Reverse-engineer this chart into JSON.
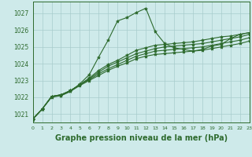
{
  "x": [
    0,
    1,
    2,
    3,
    4,
    5,
    6,
    7,
    8,
    9,
    10,
    11,
    12,
    13,
    14,
    15,
    16,
    17,
    18,
    19,
    20,
    21,
    22,
    23
  ],
  "lines": [
    [
      1020.7,
      1021.3,
      1022.0,
      1022.1,
      1022.35,
      1022.8,
      1023.35,
      1024.4,
      1025.4,
      1026.55,
      1026.75,
      1027.05,
      1027.3,
      1025.9,
      1025.2,
      1024.95,
      1024.85,
      1024.75,
      1024.85,
      1025.05,
      1025.15,
      1025.5,
      1025.75,
      1025.85
    ],
    [
      1020.7,
      1021.3,
      1022.05,
      1022.15,
      1022.4,
      1022.75,
      1023.15,
      1023.6,
      1023.95,
      1024.2,
      1024.5,
      1024.8,
      1024.95,
      1025.1,
      1025.15,
      1025.2,
      1025.25,
      1025.3,
      1025.4,
      1025.5,
      1025.6,
      1025.65,
      1025.75,
      1025.85
    ],
    [
      1020.7,
      1021.3,
      1022.05,
      1022.15,
      1022.4,
      1022.75,
      1023.1,
      1023.5,
      1023.85,
      1024.1,
      1024.35,
      1024.6,
      1024.75,
      1024.9,
      1025.0,
      1025.05,
      1025.1,
      1025.15,
      1025.2,
      1025.3,
      1025.4,
      1025.5,
      1025.6,
      1025.75
    ],
    [
      1020.7,
      1021.3,
      1022.05,
      1022.15,
      1022.4,
      1022.75,
      1023.05,
      1023.4,
      1023.7,
      1023.95,
      1024.2,
      1024.45,
      1024.6,
      1024.75,
      1024.8,
      1024.85,
      1024.9,
      1024.95,
      1025.0,
      1025.1,
      1025.2,
      1025.3,
      1025.4,
      1025.55
    ],
    [
      1020.7,
      1021.3,
      1022.05,
      1022.1,
      1022.35,
      1022.7,
      1023.0,
      1023.3,
      1023.6,
      1023.85,
      1024.05,
      1024.3,
      1024.45,
      1024.55,
      1024.6,
      1024.65,
      1024.7,
      1024.75,
      1024.8,
      1024.9,
      1025.0,
      1025.1,
      1025.2,
      1025.35
    ]
  ],
  "line_color": "#2d6a2d",
  "marker": "*",
  "markersize": 3,
  "linewidth": 0.8,
  "bg_color": "#ceeaea",
  "grid_color": "#a8cccc",
  "xlabel": "Graphe pression niveau de la mer (hPa)",
  "xlabel_fontsize": 7,
  "ylabel_ticks": [
    1021,
    1022,
    1023,
    1024,
    1025,
    1026,
    1027
  ],
  "xtick_labels": [
    "0",
    "1",
    "2",
    "3",
    "4",
    "5",
    "6",
    "7",
    "8",
    "9",
    "10",
    "11",
    "12",
    "13",
    "14",
    "15",
    "16",
    "17",
    "18",
    "19",
    "20",
    "21",
    "22",
    "23"
  ],
  "xlim": [
    0,
    23
  ],
  "ylim": [
    1020.5,
    1027.7
  ]
}
